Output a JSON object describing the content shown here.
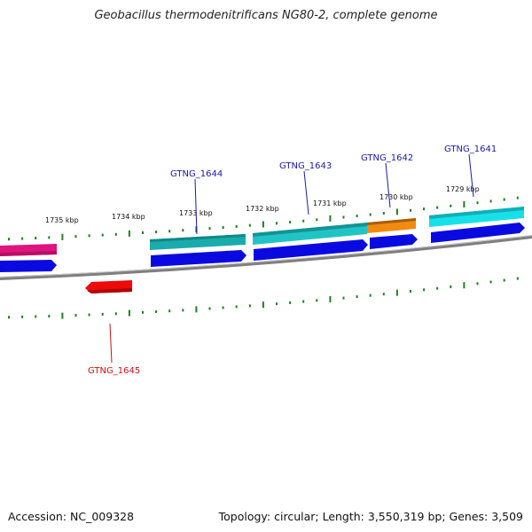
{
  "title": "Geobacillus thermodenitrificans NG80-2, complete genome",
  "footer": {
    "accession": "Accession: NC_009328",
    "summary": "Topology: circular; Length: 3,550,319 bp; Genes: 3,509"
  },
  "colors": {
    "backbone": "#7f7f7f",
    "tick": "#1f7f1f",
    "label_blue": "#1a1aa6",
    "label_red": "#cc1111",
    "cds_blue": "#0a0ae0",
    "pink": "#e0147e",
    "teal": "#1aacac",
    "orange": "#f08a10",
    "cyan": "#18e0e8",
    "red": "#ee0a0a"
  },
  "scale_labels": [
    {
      "text": "1735 kbp",
      "kbp": 1735
    },
    {
      "text": "1734 kbp",
      "kbp": 1734
    },
    {
      "text": "1733 kbp",
      "kbp": 1733
    },
    {
      "text": "1732 kbp",
      "kbp": 1732
    },
    {
      "text": "1731 kbp",
      "kbp": 1731
    },
    {
      "text": "1730 kbp",
      "kbp": 1730
    },
    {
      "text": "1729 kbp",
      "kbp": 1729
    }
  ],
  "genes": [
    {
      "label": "GTNG_1644",
      "color": "label_blue"
    },
    {
      "label": "GTNG_1643",
      "color": "label_blue"
    },
    {
      "label": "GTNG_1642",
      "color": "label_blue"
    },
    {
      "label": "GTNG_1641",
      "color": "label_blue"
    },
    {
      "label": "GTNG_1645",
      "color": "label_red"
    }
  ]
}
